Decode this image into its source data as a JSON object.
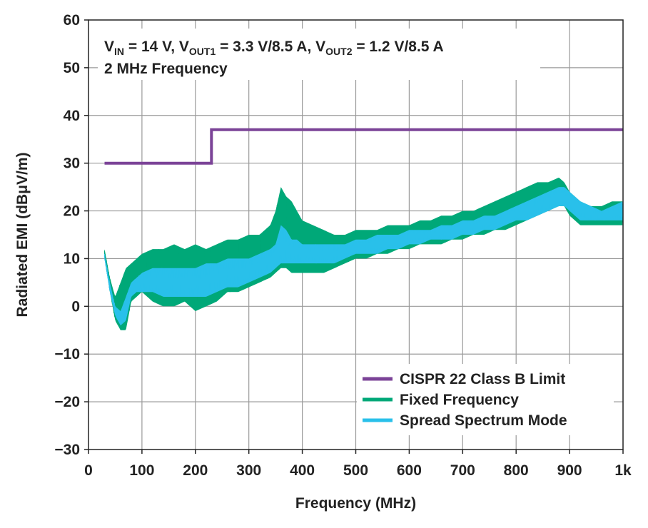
{
  "chart_data": {
    "type": "line",
    "xlabel": "Frequency (MHz)",
    "ylabel": "Radiated EMI (dBμV/m)",
    "xlim": [
      0,
      1000
    ],
    "ylim": [
      -30,
      60
    ],
    "x_ticks": [
      0,
      100,
      200,
      300,
      400,
      500,
      600,
      700,
      800,
      900,
      1000
    ],
    "x_tick_labels": [
      "0",
      "100",
      "200",
      "300",
      "400",
      "500",
      "600",
      "700",
      "800",
      "900",
      "1k"
    ],
    "y_ticks": [
      -30,
      -20,
      -10,
      0,
      10,
      20,
      30,
      40,
      50,
      60
    ],
    "y_tick_labels": [
      "−30",
      "−20",
      "−10",
      "0",
      "10",
      "20",
      "30",
      "40",
      "50",
      "60"
    ],
    "grid": true,
    "legend_position": "bottom-right",
    "annotation": {
      "line1": {
        "parts": [
          {
            "text": "V",
            "sub": false
          },
          {
            "text": "IN",
            "sub": true
          },
          {
            "text": " = 14 V, V",
            "sub": false
          },
          {
            "text": "OUT1",
            "sub": true
          },
          {
            "text": " = 3.3 V/8.5 A, V",
            "sub": false
          },
          {
            "text": "OUT2",
            "sub": true
          },
          {
            "text": " = 1.2 V/8.5 A",
            "sub": false
          }
        ]
      },
      "line2": "2 MHz Frequency"
    },
    "series": [
      {
        "name": "CISPR 22 Class B Limit",
        "color": "#7B4397",
        "style": "step",
        "x": [
          30,
          230,
          230,
          1000
        ],
        "y": [
          30,
          30,
          37,
          37
        ]
      },
      {
        "name": "Fixed Frequency",
        "color": "#00A878",
        "style": "band",
        "x": [
          30,
          40,
          50,
          60,
          70,
          80,
          90,
          100,
          120,
          140,
          160,
          180,
          200,
          220,
          240,
          260,
          280,
          300,
          320,
          340,
          350,
          360,
          370,
          380,
          390,
          400,
          420,
          440,
          460,
          480,
          500,
          520,
          540,
          560,
          580,
          600,
          620,
          640,
          660,
          680,
          700,
          720,
          740,
          760,
          780,
          800,
          820,
          840,
          860,
          880,
          890,
          900,
          920,
          940,
          960,
          980,
          1000
        ],
        "upper": [
          12,
          6,
          2,
          5,
          8,
          9,
          10,
          11,
          12,
          12,
          13,
          12,
          13,
          12,
          13,
          14,
          14,
          15,
          15,
          17,
          20,
          25,
          23,
          22,
          20,
          18,
          17,
          16,
          15,
          15,
          16,
          16,
          16,
          17,
          17,
          17,
          18,
          18,
          19,
          19,
          20,
          20,
          21,
          22,
          23,
          24,
          25,
          26,
          26,
          27,
          26,
          24,
          22,
          21,
          21,
          22,
          22
        ],
        "lower": [
          10,
          3,
          -3,
          -5,
          -5,
          1,
          2,
          3,
          1,
          0,
          0,
          1,
          -1,
          0,
          1,
          3,
          3,
          4,
          5,
          6,
          7,
          8,
          8,
          7,
          7,
          7,
          7,
          7,
          8,
          9,
          10,
          10,
          11,
          11,
          12,
          12,
          13,
          13,
          13,
          14,
          14,
          15,
          15,
          16,
          16,
          17,
          18,
          19,
          20,
          21,
          21,
          19,
          17,
          17,
          17,
          17,
          17
        ]
      },
      {
        "name": "Spread Spectrum Mode",
        "color": "#29C0EA",
        "style": "band",
        "x": [
          30,
          40,
          50,
          60,
          70,
          80,
          90,
          100,
          120,
          140,
          160,
          180,
          200,
          220,
          240,
          260,
          280,
          300,
          320,
          340,
          350,
          360,
          370,
          380,
          390,
          400,
          420,
          440,
          460,
          480,
          500,
          520,
          540,
          560,
          580,
          600,
          620,
          640,
          660,
          680,
          700,
          720,
          740,
          760,
          780,
          800,
          820,
          840,
          860,
          880,
          890,
          900,
          920,
          940,
          960,
          980,
          1000
        ],
        "upper": [
          11,
          5,
          0,
          -1,
          2,
          5,
          6,
          7,
          8,
          8,
          8,
          8,
          8,
          9,
          9,
          10,
          10,
          10,
          11,
          12,
          13,
          17,
          16,
          14,
          14,
          13,
          13,
          13,
          13,
          13,
          14,
          14,
          15,
          15,
          15,
          16,
          16,
          16,
          17,
          17,
          18,
          18,
          19,
          19,
          20,
          21,
          22,
          23,
          24,
          25,
          25,
          24,
          22,
          21,
          20,
          21,
          22
        ],
        "lower": [
          10,
          3,
          -2,
          -4,
          -3,
          2,
          3,
          3,
          3,
          2,
          2,
          2,
          2,
          2,
          3,
          4,
          4,
          5,
          6,
          7,
          8,
          9,
          9,
          9,
          9,
          9,
          9,
          9,
          9,
          10,
          11,
          11,
          11,
          12,
          12,
          13,
          13,
          14,
          14,
          14,
          15,
          15,
          16,
          16,
          17,
          18,
          18,
          19,
          20,
          21,
          21,
          20,
          18,
          18,
          18,
          18,
          18
        ]
      }
    ]
  }
}
